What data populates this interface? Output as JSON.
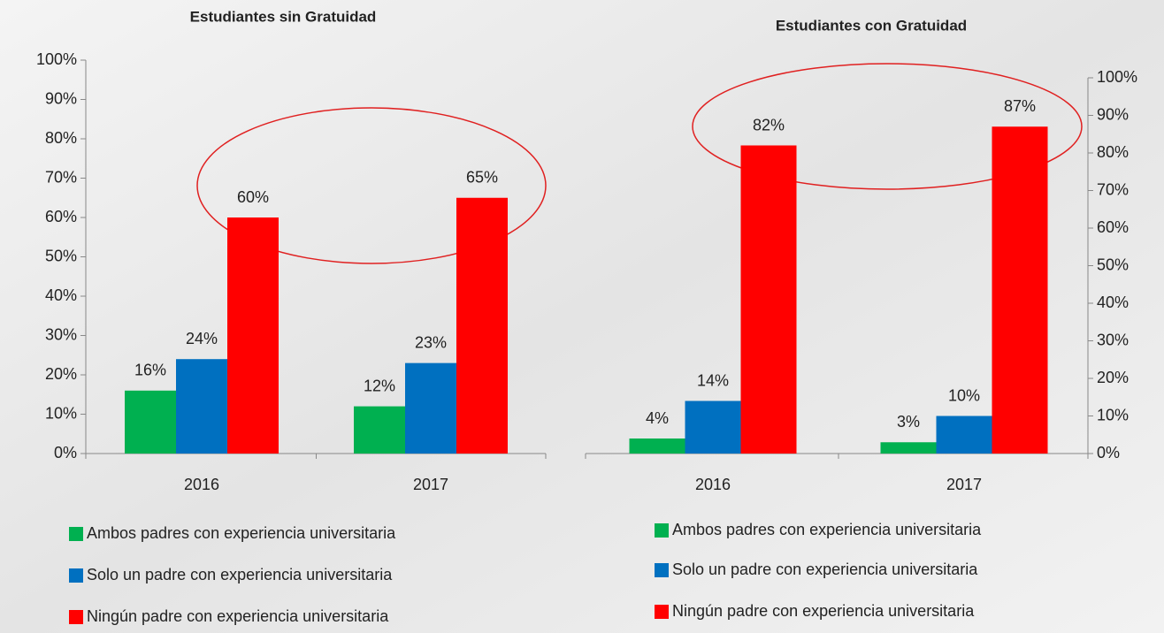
{
  "chart_data": [
    {
      "type": "bar",
      "title": "Estudiantes sin Gratuidad",
      "categories": [
        "2016",
        "2017"
      ],
      "series": [
        {
          "name": "Ambos padres con experiencia universitaria",
          "color": "#00b050",
          "values": [
            16,
            12
          ],
          "value_labels": [
            "16%",
            "12%"
          ]
        },
        {
          "name": "Solo un padre con experiencia universitaria",
          "color": "#0070c0",
          "values": [
            24,
            23
          ],
          "value_labels": [
            "24%",
            "23%"
          ]
        },
        {
          "name": "Ningún padre con experiencia universitaria",
          "color": "#ff0000",
          "values": [
            60,
            65
          ],
          "value_labels": [
            "60%",
            "65%"
          ]
        }
      ],
      "ylim": [
        0,
        100
      ],
      "y_axis_side": "left",
      "yticks": [
        {
          "value": 0,
          "label": "0%"
        },
        {
          "value": 10,
          "label": "10%"
        },
        {
          "value": 20,
          "label": "20%"
        },
        {
          "value": 30,
          "label": "30%"
        },
        {
          "value": 40,
          "label": "40%"
        },
        {
          "value": 50,
          "label": "50%"
        },
        {
          "value": 60,
          "label": "60%"
        },
        {
          "value": 70,
          "label": "70%"
        },
        {
          "value": 80,
          "label": "80%"
        },
        {
          "value": 90,
          "label": "90%"
        },
        {
          "value": 100,
          "label": "100%"
        }
      ]
    },
    {
      "type": "bar",
      "title": "Estudiantes con Gratuidad",
      "categories": [
        "2016",
        "2017"
      ],
      "series": [
        {
          "name": "Ambos padres con experiencia universitaria",
          "color": "#00b050",
          "values": [
            4,
            3
          ],
          "value_labels": [
            "4%",
            "3%"
          ]
        },
        {
          "name": "Solo un padre con experiencia universitaria",
          "color": "#0070c0",
          "values": [
            14,
            10
          ],
          "value_labels": [
            "14%",
            "10%"
          ]
        },
        {
          "name": "Ningún padre con experiencia universitaria",
          "color": "#ff0000",
          "values": [
            82,
            87
          ],
          "value_labels": [
            "82%",
            "87%"
          ]
        }
      ],
      "ylim": [
        0,
        100
      ],
      "y_axis_side": "right",
      "yticks": [
        {
          "value": 0,
          "label": "0%"
        },
        {
          "value": 10,
          "label": "10%"
        },
        {
          "value": 20,
          "label": "20%"
        },
        {
          "value": 30,
          "label": "30%"
        },
        {
          "value": 40,
          "label": "40%"
        },
        {
          "value": 50,
          "label": "50%"
        },
        {
          "value": 60,
          "label": "60%"
        },
        {
          "value": 70,
          "label": "70%"
        },
        {
          "value": 80,
          "label": "80%"
        },
        {
          "value": 90,
          "label": "90%"
        },
        {
          "value": 100,
          "label": "100%"
        }
      ]
    }
  ]
}
